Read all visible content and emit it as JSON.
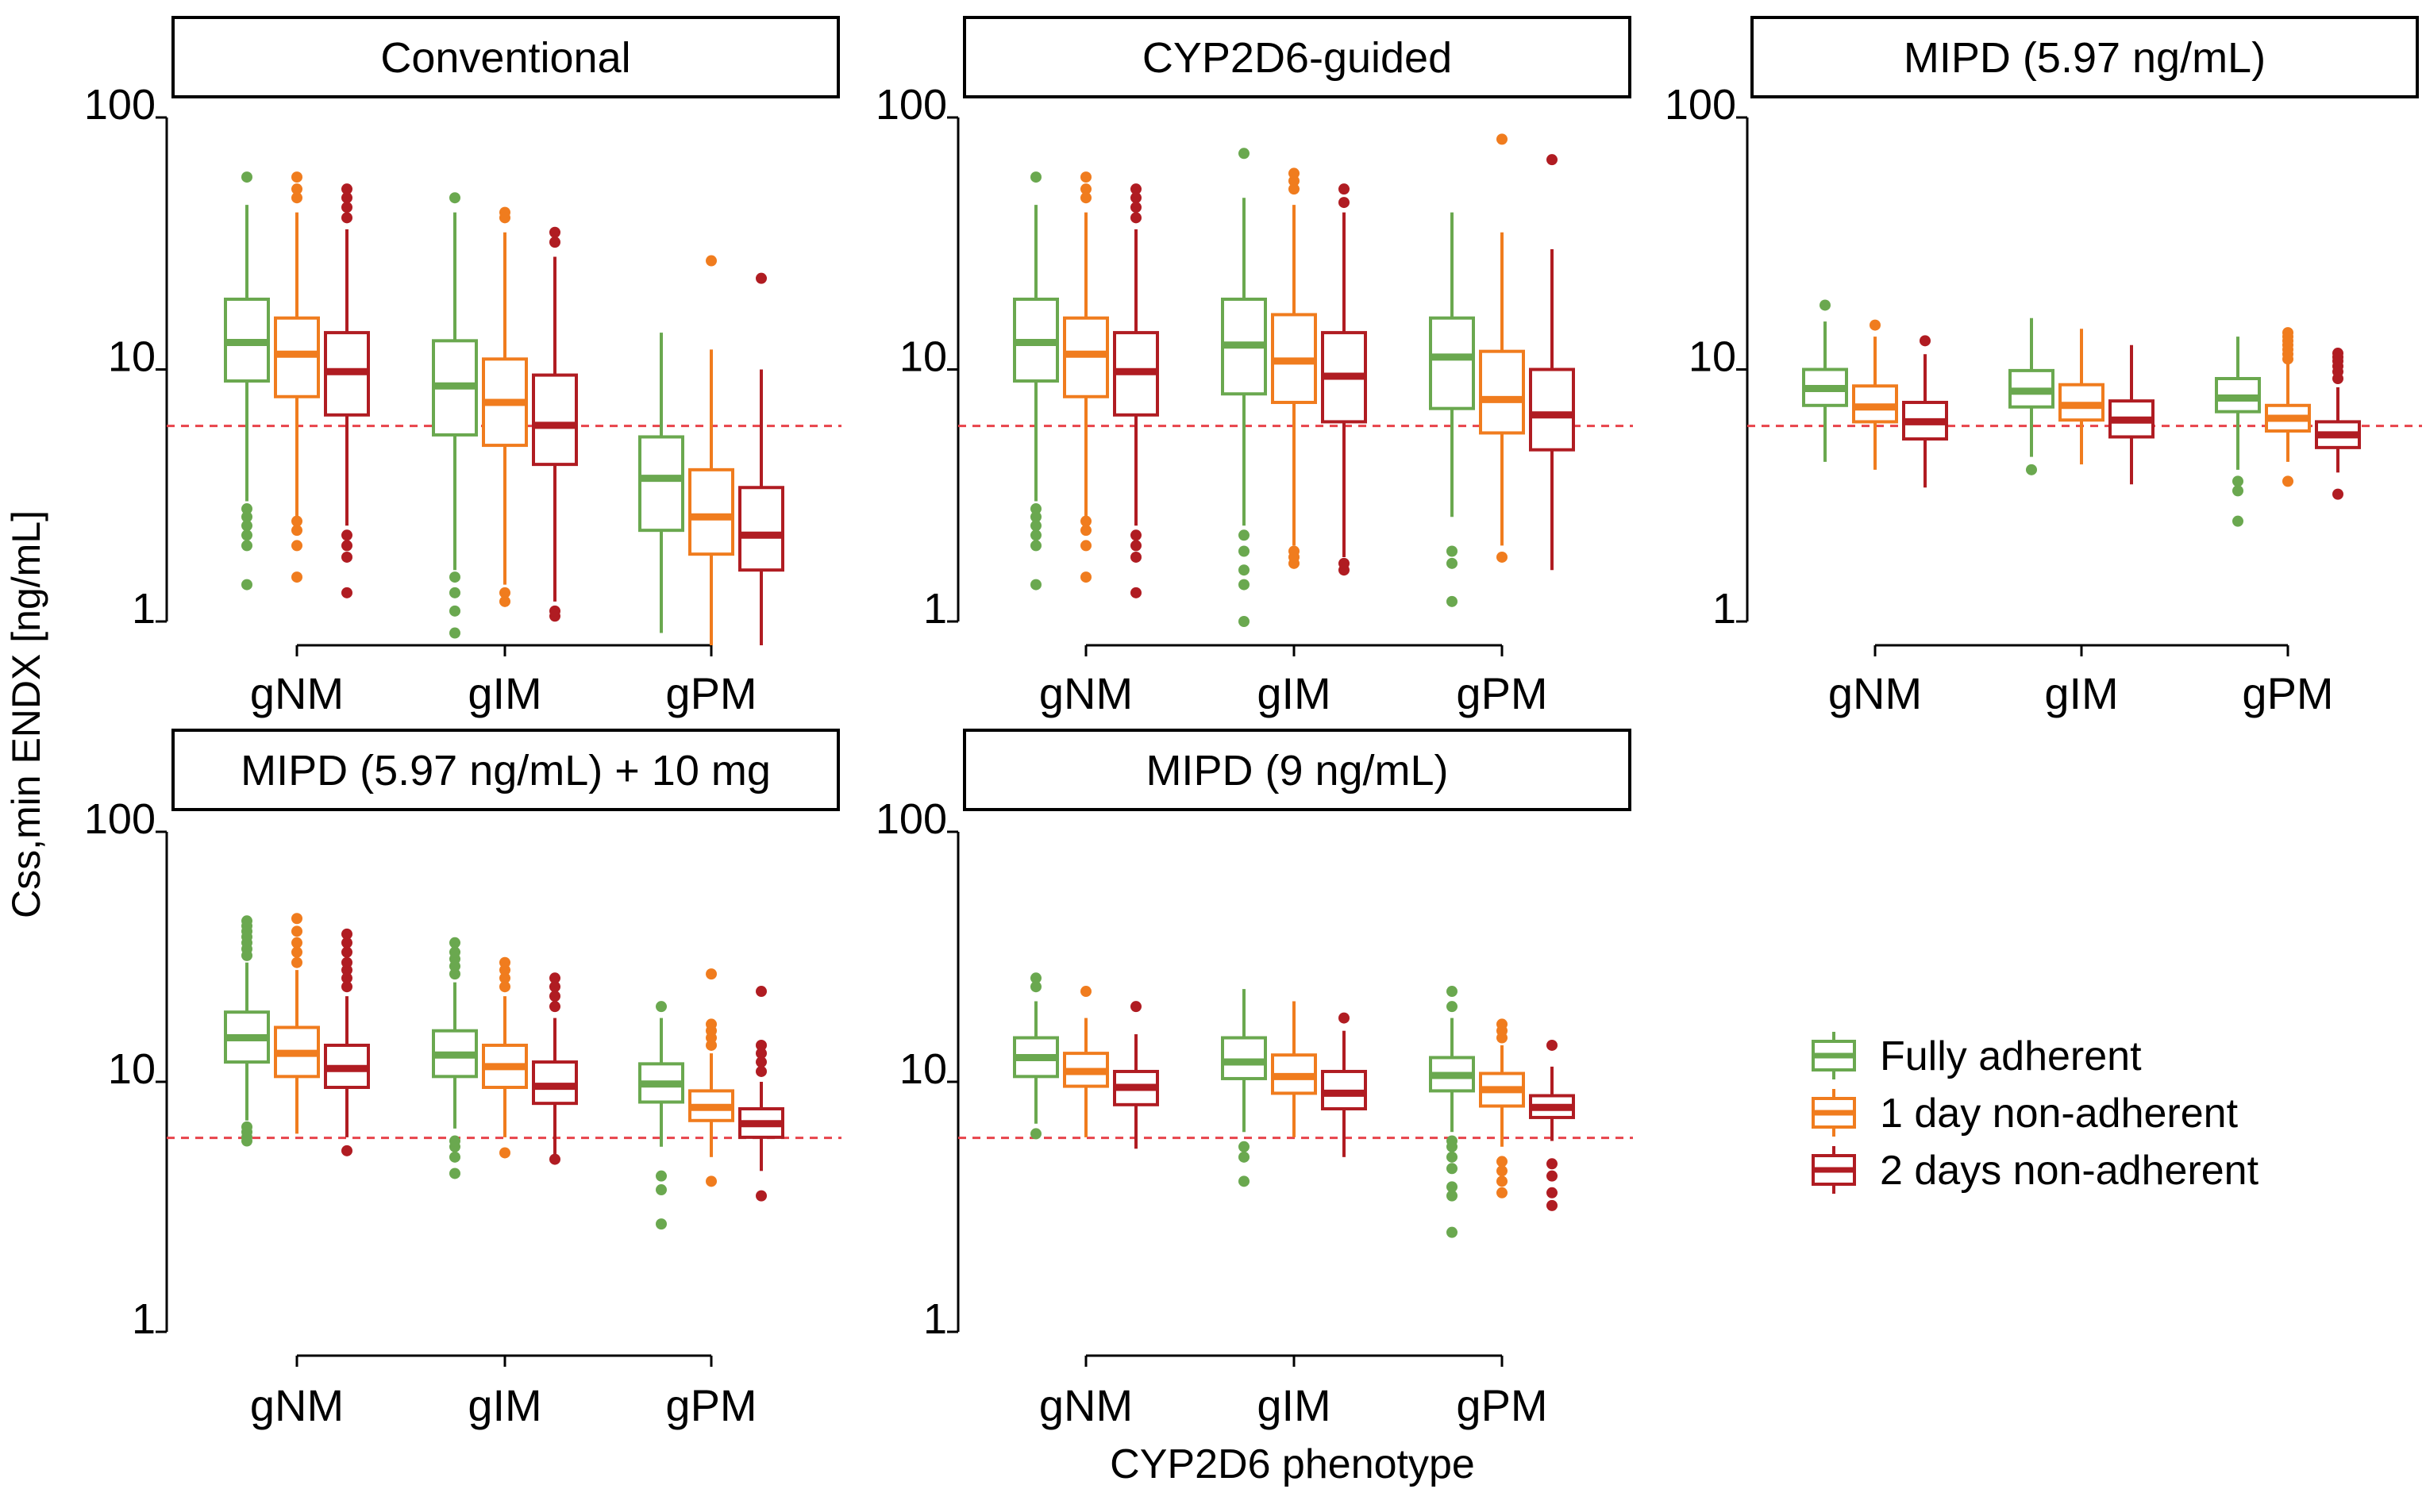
{
  "colors": {
    "fully_adherent": "#6aa84f",
    "one_day": "#f07c1e",
    "two_days": "#b01c22",
    "threshold": "#e8434a"
  },
  "chart_data": {
    "type": "box",
    "title": "",
    "ylabel": "Css,min ENDX [ng/mL]",
    "xlabel": "CYP2D6 phenotype",
    "yscale": "log",
    "ylim": [
      1,
      100
    ],
    "yticks": [
      "1",
      "10",
      "100"
    ],
    "reference_line": 5.97,
    "categories": [
      "gNM",
      "gIM",
      "gPM"
    ],
    "legend": {
      "items": [
        "Fully adherent",
        "1 day non-adherent",
        "2 days non-adherent"
      ]
    },
    "panels": [
      {
        "title": "Conventional",
        "groups": [
          [
            {
              "q1": 9.0,
              "med": 12.8,
              "q3": 19.0,
              "lo": 3.0,
              "hi": 45,
              "out": [
                1.4,
                2.0,
                2.2,
                2.4,
                2.6,
                2.8,
                58
              ]
            },
            {
              "q1": 7.8,
              "med": 11.5,
              "q3": 16.0,
              "lo": 2.6,
              "hi": 42,
              "out": [
                1.5,
                2.0,
                2.3,
                2.5,
                48,
                52,
                58
              ]
            },
            {
              "q1": 6.6,
              "med": 9.8,
              "q3": 14.0,
              "lo": 2.4,
              "hi": 36,
              "out": [
                1.3,
                1.8,
                2.0,
                2.2,
                40,
                44,
                48,
                52
              ]
            }
          ],
          [
            {
              "q1": 5.5,
              "med": 8.6,
              "q3": 13.0,
              "lo": 1.6,
              "hi": 42,
              "out": [
                0.9,
                1.1,
                1.3,
                1.5,
                48
              ]
            },
            {
              "q1": 5.0,
              "med": 7.4,
              "q3": 11.0,
              "lo": 1.4,
              "hi": 35,
              "out": [
                1.2,
                1.3,
                40,
                42
              ]
            },
            {
              "q1": 4.2,
              "med": 6.0,
              "q3": 9.5,
              "lo": 1.2,
              "hi": 28,
              "out": [
                1.05,
                1.1,
                32,
                35
              ]
            }
          ],
          [
            {
              "q1": 2.3,
              "med": 3.7,
              "q3": 5.4,
              "lo": 0.9,
              "hi": 14
            },
            {
              "q1": 1.85,
              "med": 2.6,
              "q3": 4.0,
              "lo": 0.8,
              "hi": 12,
              "out": [
                27
              ]
            },
            {
              "q1": 1.6,
              "med": 2.2,
              "q3": 3.4,
              "lo": 0.78,
              "hi": 10,
              "out": [
                23
              ]
            }
          ]
        ]
      },
      {
        "title": "CYP2D6-guided",
        "groups": [
          [
            {
              "q1": 9.0,
              "med": 12.8,
              "q3": 19.0,
              "lo": 3.0,
              "hi": 45,
              "out": [
                1.4,
                2.0,
                2.2,
                2.4,
                2.6,
                2.8,
                58
              ]
            },
            {
              "q1": 7.8,
              "med": 11.5,
              "q3": 16.0,
              "lo": 2.6,
              "hi": 42,
              "out": [
                1.5,
                2.0,
                2.3,
                2.5,
                48,
                52,
                58
              ]
            },
            {
              "q1": 6.6,
              "med": 9.8,
              "q3": 14.0,
              "lo": 2.4,
              "hi": 36,
              "out": [
                1.3,
                1.8,
                2.0,
                2.2,
                40,
                44,
                48,
                52
              ]
            }
          ],
          [
            {
              "q1": 8.0,
              "med": 12.5,
              "q3": 19.0,
              "lo": 2.4,
              "hi": 48,
              "out": [
                1.0,
                1.4,
                1.6,
                1.9,
                2.2,
                72
              ]
            },
            {
              "q1": 7.4,
              "med": 10.8,
              "q3": 16.5,
              "lo": 2.0,
              "hi": 45,
              "out": [
                1.7,
                1.8,
                1.9,
                52,
                56,
                60
              ]
            },
            {
              "q1": 6.2,
              "med": 9.4,
              "q3": 14.0,
              "lo": 1.8,
              "hi": 42,
              "out": [
                1.6,
                1.7,
                46,
                52
              ]
            }
          ],
          [
            {
              "q1": 7.0,
              "med": 11.2,
              "q3": 16.0,
              "lo": 2.6,
              "hi": 42,
              "out": [
                1.2,
                1.7,
                1.9
              ]
            },
            {
              "q1": 5.6,
              "med": 7.6,
              "q3": 11.8,
              "lo": 2.0,
              "hi": 35,
              "out": [
                1.8,
                82
              ]
            },
            {
              "q1": 4.8,
              "med": 6.6,
              "q3": 10.0,
              "lo": 1.6,
              "hi": 30,
              "out": [
                68
              ]
            }
          ]
        ]
      },
      {
        "title": "MIPD (5.97 ng/mL)",
        "groups": [
          [
            {
              "q1": 7.2,
              "med": 8.4,
              "q3": 10.0,
              "lo": 4.3,
              "hi": 15.5,
              "out": [
                18
              ]
            },
            {
              "q1": 6.2,
              "med": 7.1,
              "q3": 8.6,
              "lo": 4.0,
              "hi": 13.5,
              "out": [
                15
              ]
            },
            {
              "q1": 5.3,
              "med": 6.2,
              "q3": 7.4,
              "lo": 3.4,
              "hi": 11.5,
              "out": [
                13
              ]
            }
          ],
          [
            {
              "q1": 7.1,
              "med": 8.2,
              "q3": 9.9,
              "lo": 4.5,
              "hi": 16.0,
              "out": [
                4.0
              ]
            },
            {
              "q1": 6.3,
              "med": 7.2,
              "q3": 8.7,
              "lo": 4.2,
              "hi": 14.5
            },
            {
              "q1": 5.4,
              "med": 6.3,
              "q3": 7.5,
              "lo": 3.5,
              "hi": 12.5
            }
          ],
          [
            {
              "q1": 6.8,
              "med": 7.7,
              "q3": 9.2,
              "lo": 4.0,
              "hi": 13.5,
              "out": [
                2.5,
                3.3,
                3.6
              ]
            },
            {
              "q1": 5.7,
              "med": 6.4,
              "q3": 7.2,
              "lo": 4.3,
              "hi": 10.5,
              "out": [
                3.6,
                11,
                11.5,
                12,
                12.5,
                13,
                13.5,
                14
              ]
            },
            {
              "q1": 4.9,
              "med": 5.5,
              "q3": 6.2,
              "lo": 3.9,
              "hi": 8.5,
              "out": [
                3.2,
                9.2,
                9.8,
                10.3,
                10.8,
                11.2,
                11.6
              ]
            }
          ]
        ]
      },
      {
        "title": "MIPD (5.97 ng/mL) + 10 mg",
        "groups": [
          [
            {
              "q1": 12.0,
              "med": 15.0,
              "q3": 19.0,
              "lo": 7.0,
              "hi": 30,
              "out": [
                5.8,
                6.0,
                6.3,
                6.6,
                32,
                34,
                36,
                38,
                40,
                42,
                44
              ]
            },
            {
              "q1": 10.5,
              "med": 13.0,
              "q3": 16.5,
              "lo": 6.2,
              "hi": 28,
              "out": [
                30,
                33,
                36,
                40,
                45
              ]
            },
            {
              "q1": 9.5,
              "med": 11.3,
              "q3": 14.0,
              "lo": 6.0,
              "hi": 22,
              "out": [
                5.3,
                24,
                26,
                28,
                30,
                33,
                36,
                39
              ]
            }
          ],
          [
            {
              "q1": 10.5,
              "med": 12.8,
              "q3": 16.0,
              "lo": 6.5,
              "hi": 25,
              "out": [
                4.3,
                5.0,
                5.5,
                5.8,
                27,
                29,
                31,
                33,
                36
              ]
            },
            {
              "q1": 9.5,
              "med": 11.5,
              "q3": 14.0,
              "lo": 6.0,
              "hi": 22,
              "out": [
                5.2,
                24,
                26,
                28,
                30
              ]
            },
            {
              "q1": 8.2,
              "med": 9.6,
              "q3": 12.0,
              "lo": 5.0,
              "hi": 18,
              "out": [
                4.9,
                20,
                22,
                24,
                26
              ]
            }
          ],
          [
            {
              "q1": 8.3,
              "med": 9.8,
              "q3": 11.8,
              "lo": 5.5,
              "hi": 18,
              "out": [
                2.7,
                3.7,
                4.2,
                20
              ]
            },
            {
              "q1": 7.0,
              "med": 7.9,
              "q3": 9.2,
              "lo": 5.0,
              "hi": 13,
              "out": [
                4.0,
                14,
                15,
                16,
                17,
                27
              ]
            },
            {
              "q1": 6.0,
              "med": 6.8,
              "q3": 7.8,
              "lo": 4.4,
              "hi": 10,
              "out": [
                3.5,
                11,
                12,
                13,
                14,
                23
              ]
            }
          ]
        ]
      },
      {
        "title": "MIPD (9 ng/mL)",
        "groups": [
          [
            {
              "q1": 10.5,
              "med": 12.5,
              "q3": 15.0,
              "lo": 6.8,
              "hi": 21,
              "out": [
                6.2,
                24,
                26
              ]
            },
            {
              "q1": 9.6,
              "med": 11.0,
              "q3": 13.0,
              "lo": 6.0,
              "hi": 18,
              "out": [
                23
              ]
            },
            {
              "q1": 8.1,
              "med": 9.5,
              "q3": 11.0,
              "lo": 5.4,
              "hi": 15.5,
              "out": [
                20
              ]
            }
          ],
          [
            {
              "q1": 10.3,
              "med": 12.0,
              "q3": 15.0,
              "lo": 6.3,
              "hi": 23.5,
              "out": [
                4.0,
                5.0,
                5.5
              ]
            },
            {
              "q1": 9.0,
              "med": 10.5,
              "q3": 12.8,
              "lo": 6.0,
              "hi": 21
            },
            {
              "q1": 7.8,
              "med": 9.0,
              "q3": 11.0,
              "lo": 5.0,
              "hi": 16,
              "out": [
                18
              ]
            }
          ],
          [
            {
              "q1": 9.2,
              "med": 10.6,
              "q3": 12.5,
              "lo": 6.3,
              "hi": 18,
              "out": [
                2.5,
                3.5,
                3.8,
                4.5,
                5.0,
                5.5,
                5.8,
                20,
                23
              ]
            },
            {
              "q1": 8.0,
              "med": 9.3,
              "q3": 10.8,
              "lo": 5.5,
              "hi": 14,
              "out": [
                3.6,
                4.0,
                4.4,
                4.8,
                15,
                16,
                17
              ]
            },
            {
              "q1": 7.2,
              "med": 7.9,
              "q3": 8.8,
              "lo": 5.8,
              "hi": 11.5,
              "out": [
                3.2,
                3.6,
                4.2,
                4.7,
                14
              ]
            }
          ]
        ]
      }
    ]
  }
}
